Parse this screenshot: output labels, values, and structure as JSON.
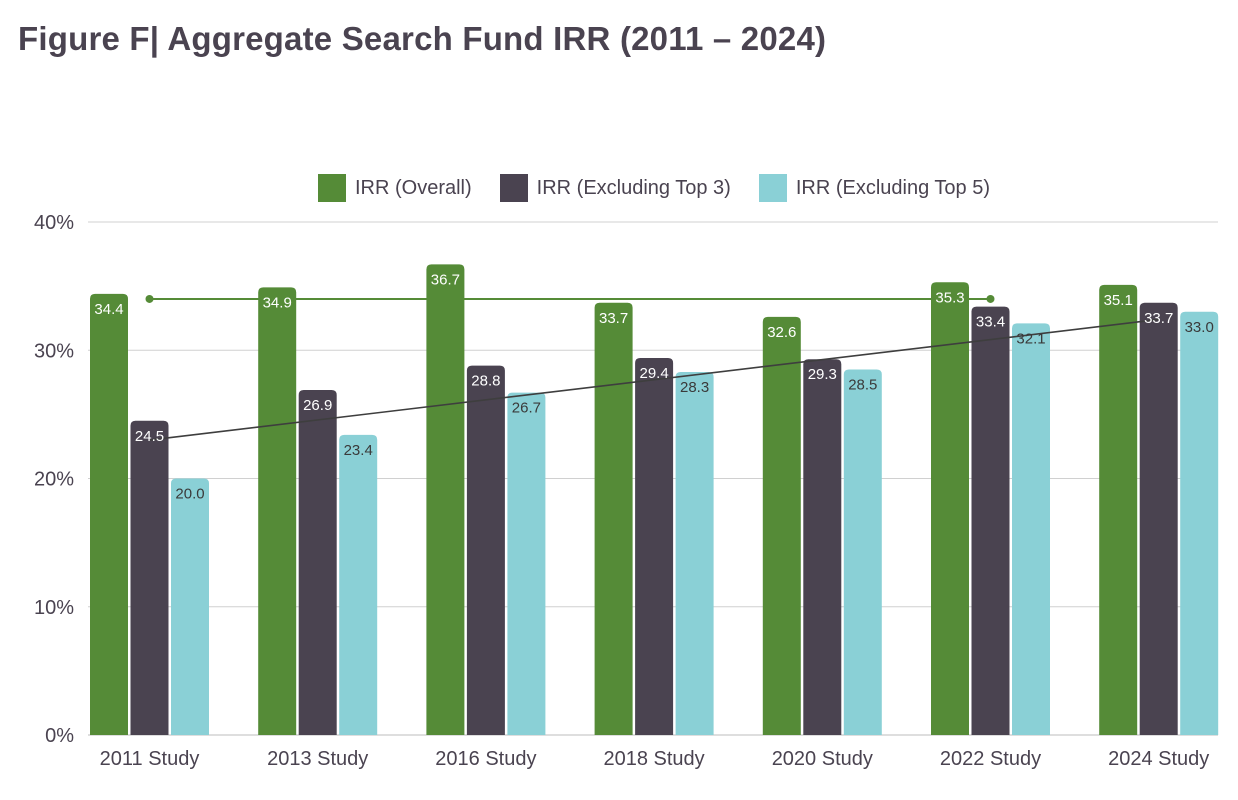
{
  "title": "Figure F|  Aggregate Search Fund IRR (2011 – 2024)",
  "colors": {
    "overall": "#558b37",
    "excl3": "#4a4350",
    "excl5": "#8ad0d6",
    "grid": "#d0d0d0",
    "avg_line": "#558b37",
    "trend_line": "#3e3e3e"
  },
  "chart_data": {
    "type": "bar",
    "title": "Figure F|  Aggregate Search Fund IRR (2011 – 2024)",
    "categories": [
      "2011 Study",
      "2013 Study",
      "2016 Study",
      "2018 Study",
      "2020 Study",
      "2022 Study",
      "2024 Study"
    ],
    "series": [
      {
        "name": "IRR (Overall)",
        "color": "#558b37",
        "values": [
          34.4,
          34.9,
          36.7,
          33.7,
          32.6,
          35.3,
          35.1
        ]
      },
      {
        "name": "IRR (Excluding Top 3)",
        "color": "#4a4350",
        "values": [
          24.5,
          26.9,
          28.8,
          29.4,
          29.3,
          33.4,
          33.7
        ]
      },
      {
        "name": "IRR (Excluding Top 5)",
        "color": "#8ad0d6",
        "values": [
          20.0,
          23.4,
          26.7,
          28.3,
          28.5,
          32.1,
          33.0
        ]
      }
    ],
    "value_labels": [
      [
        "34.4",
        "34.9",
        "36.7",
        "33.7",
        "32.6",
        "35.3",
        "35.1"
      ],
      [
        "24.5",
        "26.9",
        "28.8",
        "29.4",
        "29.3",
        "33.4",
        "33.7"
      ],
      [
        "20.0",
        "23.4",
        "26.7",
        "28.3",
        "28.5",
        "32.1",
        "33.0"
      ]
    ],
    "y_ticks": [
      0,
      10,
      20,
      30,
      40
    ],
    "y_tick_labels": [
      "0%",
      "10%",
      "20%",
      "30%",
      "40%"
    ],
    "ylim": [
      0,
      40
    ],
    "avg_line": {
      "value": 34.0,
      "from_category": 0,
      "to_category": 5
    },
    "trend_line": {
      "start": 23.0,
      "end": 32.4,
      "from_category": 0,
      "to_category": 6
    },
    "grid": true,
    "legend_position": "top"
  }
}
